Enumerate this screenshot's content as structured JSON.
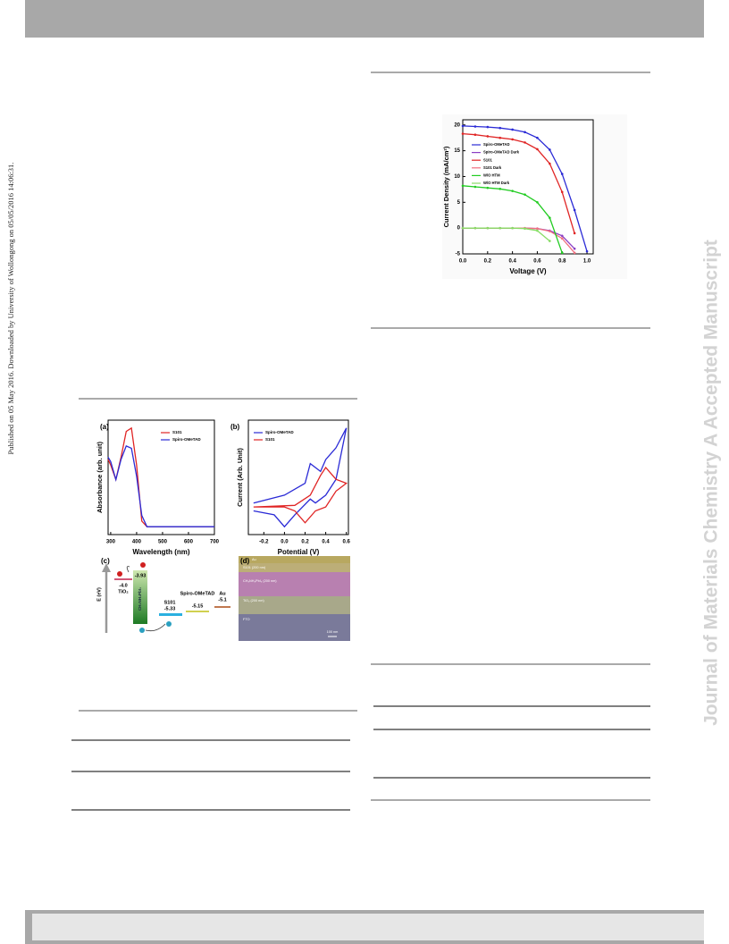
{
  "side_note": "Published on 05 May 2016. Downloaded by University of Wollongong on 05/05/2016 14:06:31.",
  "watermark": "Journal of Materials Chemistry A Accepted Manuscript",
  "chart_data": [
    {
      "type": "line",
      "xlabel": "Voltage (V)",
      "ylabel": "Current Density (mA/cm²)",
      "markers": true,
      "x": [
        0,
        0.1,
        0.2,
        0.3,
        0.4,
        0.5,
        0.6,
        0.7,
        0.8,
        0.9,
        1.0
      ],
      "xlim": [
        0,
        1.05
      ],
      "ylim": [
        -5,
        21
      ],
      "xticks": [
        {
          "value": 0,
          "label": "0.0"
        },
        0.2,
        0.4,
        0.6,
        0.8,
        {
          "value": 1,
          "label": "1.0"
        }
      ],
      "yticks": [
        -5,
        0,
        5,
        10,
        15,
        20
      ],
      "series": [
        {
          "name": "Spiro-OMeTAD",
          "color": "#2b2bd6",
          "values": [
            19.8,
            19.7,
            19.6,
            19.4,
            19.1,
            18.6,
            17.5,
            15.2,
            10.5,
            3.5,
            -4.5
          ]
        },
        {
          "name": "Spiro-OMeTAD Dark",
          "color": "#8a3fc4",
          "values": [
            0,
            0,
            0,
            0,
            0,
            0,
            -0.1,
            -0.5,
            -1.5,
            -4,
            null
          ]
        },
        {
          "name": "S101",
          "color": "#e02424",
          "values": [
            18.3,
            18.1,
            17.8,
            17.5,
            17.2,
            16.6,
            15.3,
            12.5,
            7.0,
            -1.0,
            null
          ]
        },
        {
          "name": "S101 Dark",
          "color": "#f07080",
          "values": [
            0,
            0,
            0,
            0,
            0,
            0,
            -0.1,
            -0.6,
            -2,
            -4.8,
            null
          ]
        },
        {
          "name": "W/O HTM",
          "color": "#22cc22",
          "values": [
            8.2,
            8.0,
            7.8,
            7.6,
            7.2,
            6.5,
            5.0,
            2.0,
            -4.8,
            null,
            null
          ]
        },
        {
          "name": "W/O HTM Dark",
          "color": "#88dd66",
          "values": [
            0,
            0,
            0,
            0,
            0,
            -0.1,
            -0.5,
            -2.5,
            null,
            null,
            null
          ]
        }
      ]
    },
    {
      "type": "line",
      "panel": "(a)",
      "xlabel": "Wavelength (nm)",
      "ylabel": "Absorbance (arb. unit)",
      "x": [
        290,
        300,
        320,
        340,
        360,
        380,
        400,
        420,
        440,
        500,
        600,
        700
      ],
      "xlim": [
        290,
        700
      ],
      "xticks": [
        300,
        400,
        500,
        600,
        700
      ],
      "series": [
        {
          "name": "S101",
          "color": "#e02424",
          "values": [
            0.6,
            0.55,
            0.42,
            0.62,
            0.85,
            0.88,
            0.55,
            0.05,
            0,
            0,
            0,
            0
          ]
        },
        {
          "name": "Spiro-OMeTAD",
          "color": "#2b2bd6",
          "values": [
            0.62,
            0.58,
            0.42,
            0.6,
            0.72,
            0.7,
            0.45,
            0.1,
            0,
            0,
            0,
            0
          ]
        }
      ]
    },
    {
      "type": "line",
      "panel": "(b)",
      "xlabel": "Potential (V)",
      "ylabel": "Current (Arb. Unit)",
      "xlim": [
        -0.35,
        0.62
      ],
      "xticks": [
        -0.2,
        {
          "value": 0,
          "label": "0.0"
        },
        0.2,
        0.4,
        0.6
      ],
      "series": [
        {
          "name": "Spiro-OMeTAD",
          "color": "#2b2bd6",
          "x": [
            -0.3,
            0.0,
            0.2,
            0.25,
            0.35,
            0.4,
            0.5,
            0.6,
            0.5,
            0.4,
            0.3,
            0.25,
            0.1,
            0.0,
            -0.1,
            -0.3
          ],
          "values": [
            0.05,
            0.15,
            0.3,
            0.55,
            0.45,
            0.6,
            0.75,
            1.0,
            0.35,
            0.15,
            0.05,
            0.1,
            -0.1,
            -0.25,
            -0.1,
            -0.05
          ]
        },
        {
          "name": "S101",
          "color": "#e02424",
          "x": [
            -0.3,
            0.1,
            0.25,
            0.35,
            0.4,
            0.5,
            0.6,
            0.5,
            0.4,
            0.3,
            0.2,
            0.1,
            0.0,
            -0.3
          ],
          "values": [
            0.0,
            0.02,
            0.15,
            0.4,
            0.5,
            0.35,
            0.3,
            0.2,
            0.0,
            -0.05,
            -0.2,
            -0.05,
            0.0,
            0.0
          ]
        }
      ]
    }
  ],
  "energy_diagram": {
    "panel": "(c)",
    "axis": "E (eV)",
    "levels": [
      {
        "name": "TiO₂",
        "value": "-4.0"
      },
      {
        "name": "CH₃NH₃PbI₃",
        "value": "-3.93"
      },
      {
        "name": "S101",
        "value": "-5.33"
      },
      {
        "name": "Spiro-OMeTAD",
        "value": "-5.15"
      },
      {
        "name": "Au",
        "value": "-5.1"
      }
    ]
  },
  "sem_image": {
    "panel": "(d)",
    "layers": [
      "Au",
      "S101 (200 nm)",
      "CH₃NH₃PbI₃ (200 nm)",
      "TiO₂ (200 nm)",
      "FTO"
    ],
    "scale_bar": "100 nm"
  }
}
